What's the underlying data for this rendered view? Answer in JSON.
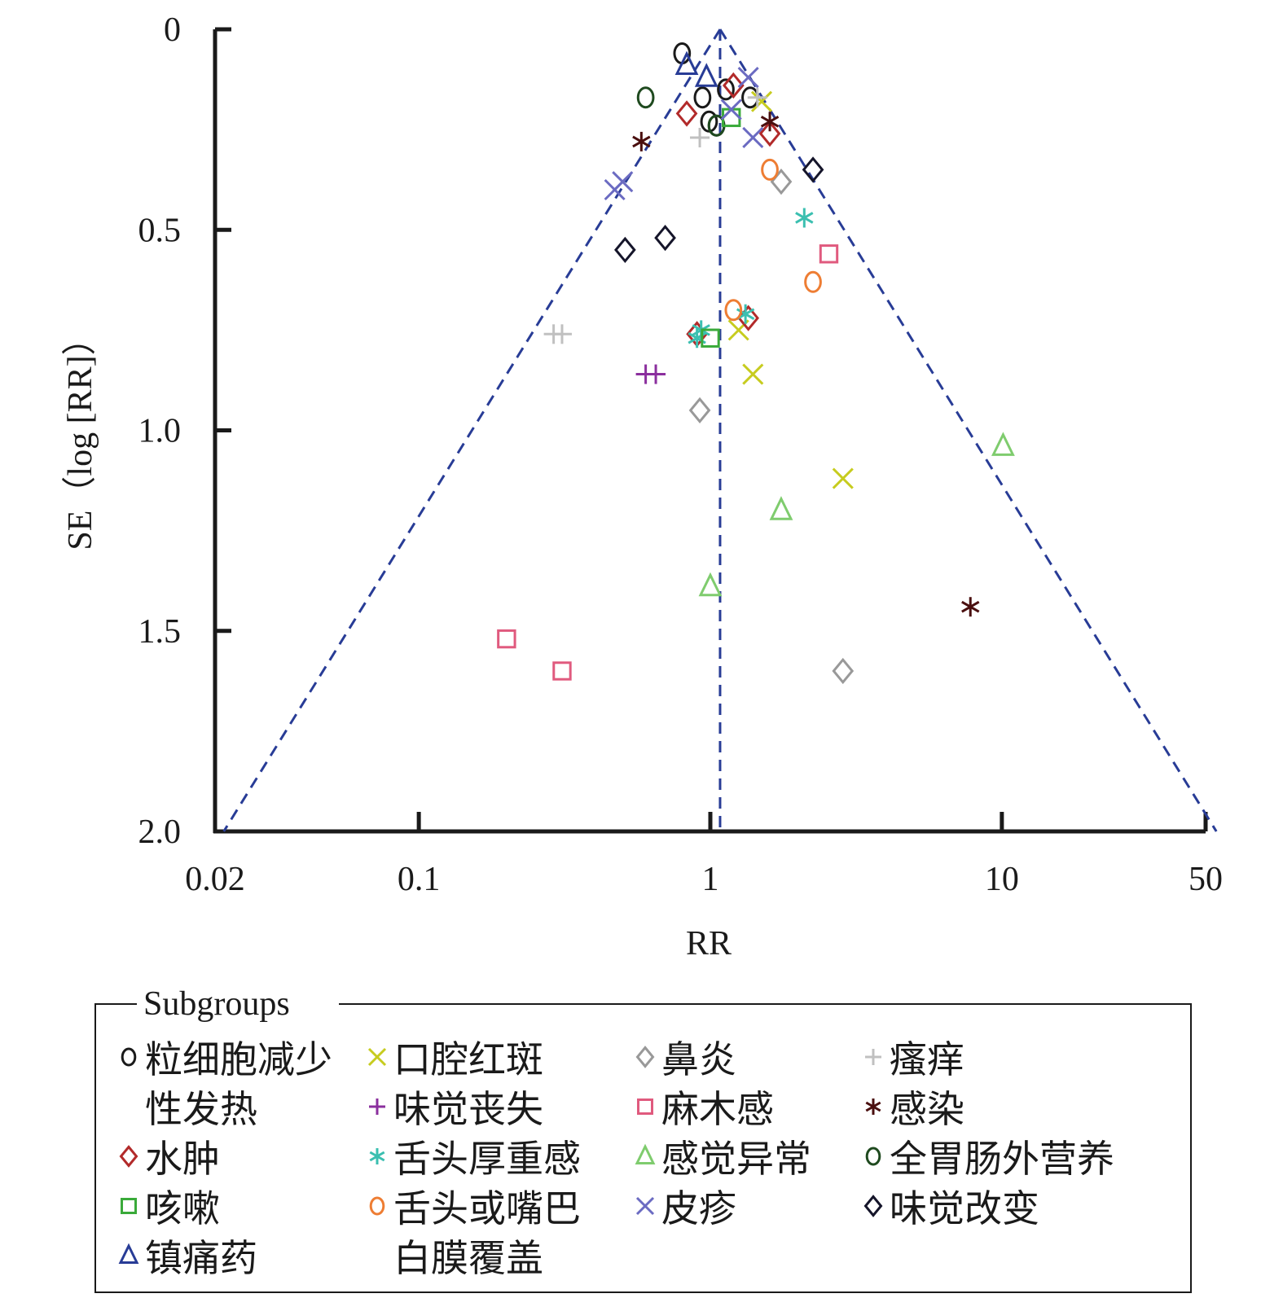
{
  "chart_data": {
    "type": "scatter",
    "title": "",
    "xlabel": "RR",
    "ylabel": "SE（log [RR]）",
    "x_scale": "log",
    "xlim": [
      0.02,
      50
    ],
    "ylim": [
      0,
      2.0
    ],
    "y_reversed": true,
    "x_ticks": [
      0.02,
      0.1,
      1,
      10,
      50
    ],
    "x_tick_labels": [
      "0.02",
      "0.1",
      "1",
      "10",
      "50"
    ],
    "y_ticks": [
      0,
      0.5,
      1.0,
      1.5,
      2.0
    ],
    "y_tick_labels": [
      "0",
      "0.5",
      "1.0",
      "1.5",
      "2.0"
    ],
    "pooled_rr": 1.08,
    "funnel": true,
    "legend_title": "Subgroups",
    "legend_position": "bottom",
    "series": [
      {
        "name": "粒细胞减少性发热",
        "legend_lines": [
          "粒细胞减少",
          "性发热"
        ],
        "marker": "circle",
        "color": "#1a1a1a",
        "points": [
          [
            0.8,
            0.06
          ],
          [
            0.94,
            0.17
          ],
          [
            1.13,
            0.15
          ],
          [
            1.37,
            0.17
          ],
          [
            0.99,
            0.23
          ],
          [
            1.05,
            0.24
          ]
        ]
      },
      {
        "name": "口腔红斑",
        "legend_lines": [
          "口腔红斑"
        ],
        "marker": "x",
        "color": "#c7cc1f",
        "points": [
          [
            1.5,
            0.18
          ],
          [
            1.25,
            0.75
          ],
          [
            1.4,
            0.86
          ],
          [
            2.85,
            1.12
          ]
        ]
      },
      {
        "name": "鼻炎",
        "legend_lines": [
          "鼻炎"
        ],
        "marker": "diamond",
        "color": "#999999",
        "points": [
          [
            1.75,
            0.38
          ],
          [
            0.92,
            0.95
          ],
          [
            2.85,
            1.6
          ]
        ]
      },
      {
        "name": "瘙痒",
        "legend_lines": [
          "瘙痒"
        ],
        "marker": "plus",
        "color": "#c0c0c0",
        "points": [
          [
            1.45,
            0.17
          ],
          [
            0.92,
            0.27
          ],
          [
            0.29,
            0.76
          ],
          [
            0.31,
            0.76
          ]
        ]
      },
      {
        "name": "水肿",
        "legend_lines": [
          "水肿"
        ],
        "marker": "diamond",
        "color": "#b22a2a",
        "points": [
          [
            1.2,
            0.14
          ],
          [
            0.83,
            0.21
          ],
          [
            1.6,
            0.26
          ],
          [
            0.9,
            0.76
          ],
          [
            1.35,
            0.72
          ]
        ]
      },
      {
        "name": "味觉丧失",
        "legend_lines": [
          "味觉丧失"
        ],
        "marker": "plus",
        "color": "#8b2f9e",
        "points": [
          [
            0.6,
            0.86
          ],
          [
            0.65,
            0.86
          ]
        ]
      },
      {
        "name": "麻木感",
        "legend_lines": [
          "麻木感"
        ],
        "marker": "square",
        "color": "#e05a7e",
        "points": [
          [
            2.55,
            0.56
          ],
          [
            0.2,
            1.52
          ],
          [
            0.31,
            1.6
          ]
        ]
      },
      {
        "name": "感染",
        "legend_lines": [
          "感染"
        ],
        "marker": "asterisk",
        "color": "#4a0f0f",
        "points": [
          [
            1.6,
            0.23
          ],
          [
            0.58,
            0.28
          ],
          [
            7.8,
            1.44
          ]
        ]
      },
      {
        "name": "舌头厚重感",
        "legend_lines": [
          "舌头厚重感"
        ],
        "marker": "asterisk",
        "color": "#3bbfb0",
        "points": [
          [
            2.1,
            0.47
          ],
          [
            1.32,
            0.71
          ],
          [
            0.9,
            0.77
          ],
          [
            0.93,
            0.75
          ]
        ]
      },
      {
        "name": "感觉异常",
        "legend_lines": [
          "感觉异常"
        ],
        "marker": "triangle",
        "color": "#7fcc6e",
        "points": [
          [
            10.1,
            1.04
          ],
          [
            1.75,
            1.2
          ],
          [
            1.0,
            1.39
          ]
        ]
      },
      {
        "name": "全胃肠外营养",
        "legend_lines": [
          "全胃肠外营养"
        ],
        "marker": "circle",
        "color": "#1f4a1f",
        "points": [
          [
            0.6,
            0.17
          ],
          [
            1.05,
            0.24
          ]
        ]
      },
      {
        "name": "咳嗽",
        "legend_lines": [
          "咳嗽"
        ],
        "marker": "square",
        "color": "#3aaa3a",
        "points": [
          [
            1.18,
            0.22
          ],
          [
            1.0,
            0.77
          ]
        ]
      },
      {
        "name": "舌头或嘴巴白膜覆盖",
        "legend_lines": [
          "舌头或嘴巴",
          "白膜覆盖"
        ],
        "marker": "circle",
        "color": "#ee7d33",
        "points": [
          [
            1.6,
            0.35
          ],
          [
            2.25,
            0.63
          ],
          [
            1.2,
            0.7
          ]
        ]
      },
      {
        "name": "皮疹",
        "legend_lines": [
          "皮疹"
        ],
        "marker": "x",
        "color": "#6b6bc2",
        "points": [
          [
            1.35,
            0.12
          ],
          [
            1.18,
            0.2
          ],
          [
            1.4,
            0.27
          ],
          [
            0.47,
            0.4
          ],
          [
            0.5,
            0.38
          ]
        ]
      },
      {
        "name": "味觉改变",
        "legend_lines": [
          "味觉改变"
        ],
        "marker": "diamond",
        "color": "#15152a",
        "points": [
          [
            2.25,
            0.35
          ],
          [
            0.7,
            0.52
          ],
          [
            0.51,
            0.55
          ]
        ]
      },
      {
        "name": "镇痛药",
        "legend_lines": [
          "镇痛药"
        ],
        "marker": "triangle",
        "color": "#283c96",
        "points": [
          [
            0.83,
            0.09
          ],
          [
            0.97,
            0.12
          ]
        ]
      }
    ]
  }
}
